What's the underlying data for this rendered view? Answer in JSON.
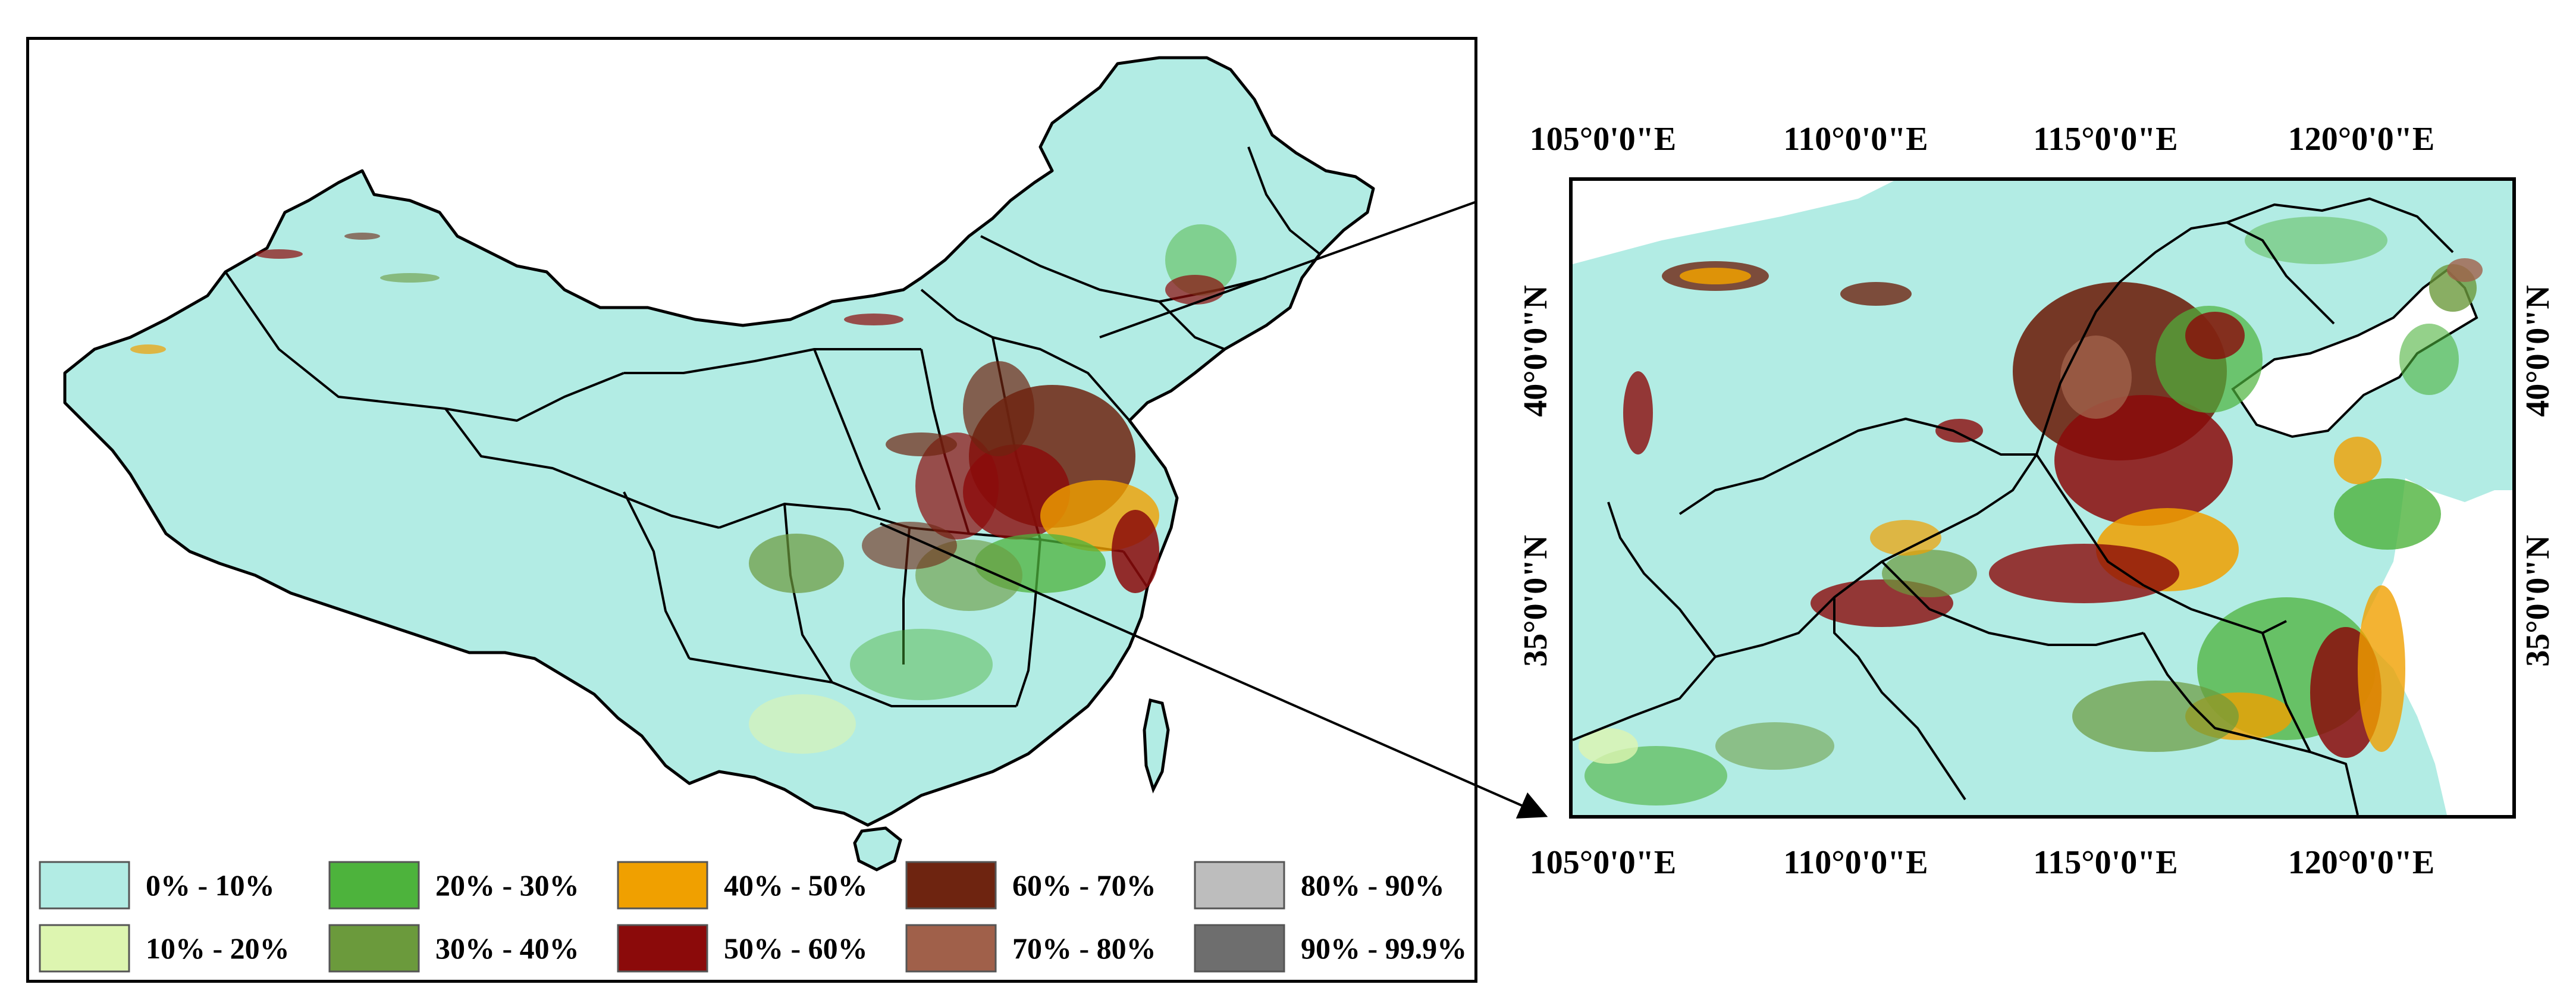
{
  "legend": {
    "items": [
      {
        "label": "0% - 10%",
        "color": "#b2ece4"
      },
      {
        "label": "10% - 20%",
        "color": "#ddf5b0"
      },
      {
        "label": "20% - 30%",
        "color": "#4db33c"
      },
      {
        "label": "30% - 40%",
        "color": "#6b9a3c"
      },
      {
        "label": "40% - 50%",
        "color": "#f0a000"
      },
      {
        "label": "50% - 60%",
        "color": "#8b0a0a"
      },
      {
        "label": "60% - 70%",
        "color": "#6e2410"
      },
      {
        "label": "70% - 80%",
        "color": "#a0604a"
      },
      {
        "label": "80% - 90%",
        "color": "#bdbdbd"
      },
      {
        "label": "90% - 99.9%",
        "color": "#6e6e6e"
      }
    ]
  },
  "inset": {
    "top_labels": [
      "105°0'0\"E",
      "110°0'0\"E",
      "115°0'0\"E",
      "120°0'0\"E"
    ],
    "bottom_labels": [
      "105°0'0\"E",
      "110°0'0\"E",
      "115°0'0\"E",
      "120°0'0\"E"
    ],
    "left_labels": [
      "40°0'0\"N",
      "35°0'0\"N"
    ],
    "right_labels": [
      "40°0'0\"N",
      "35°0'0\"N"
    ]
  },
  "colors": {
    "base": "#b2ece4",
    "border": "#000000",
    "arrow": "#000000"
  }
}
